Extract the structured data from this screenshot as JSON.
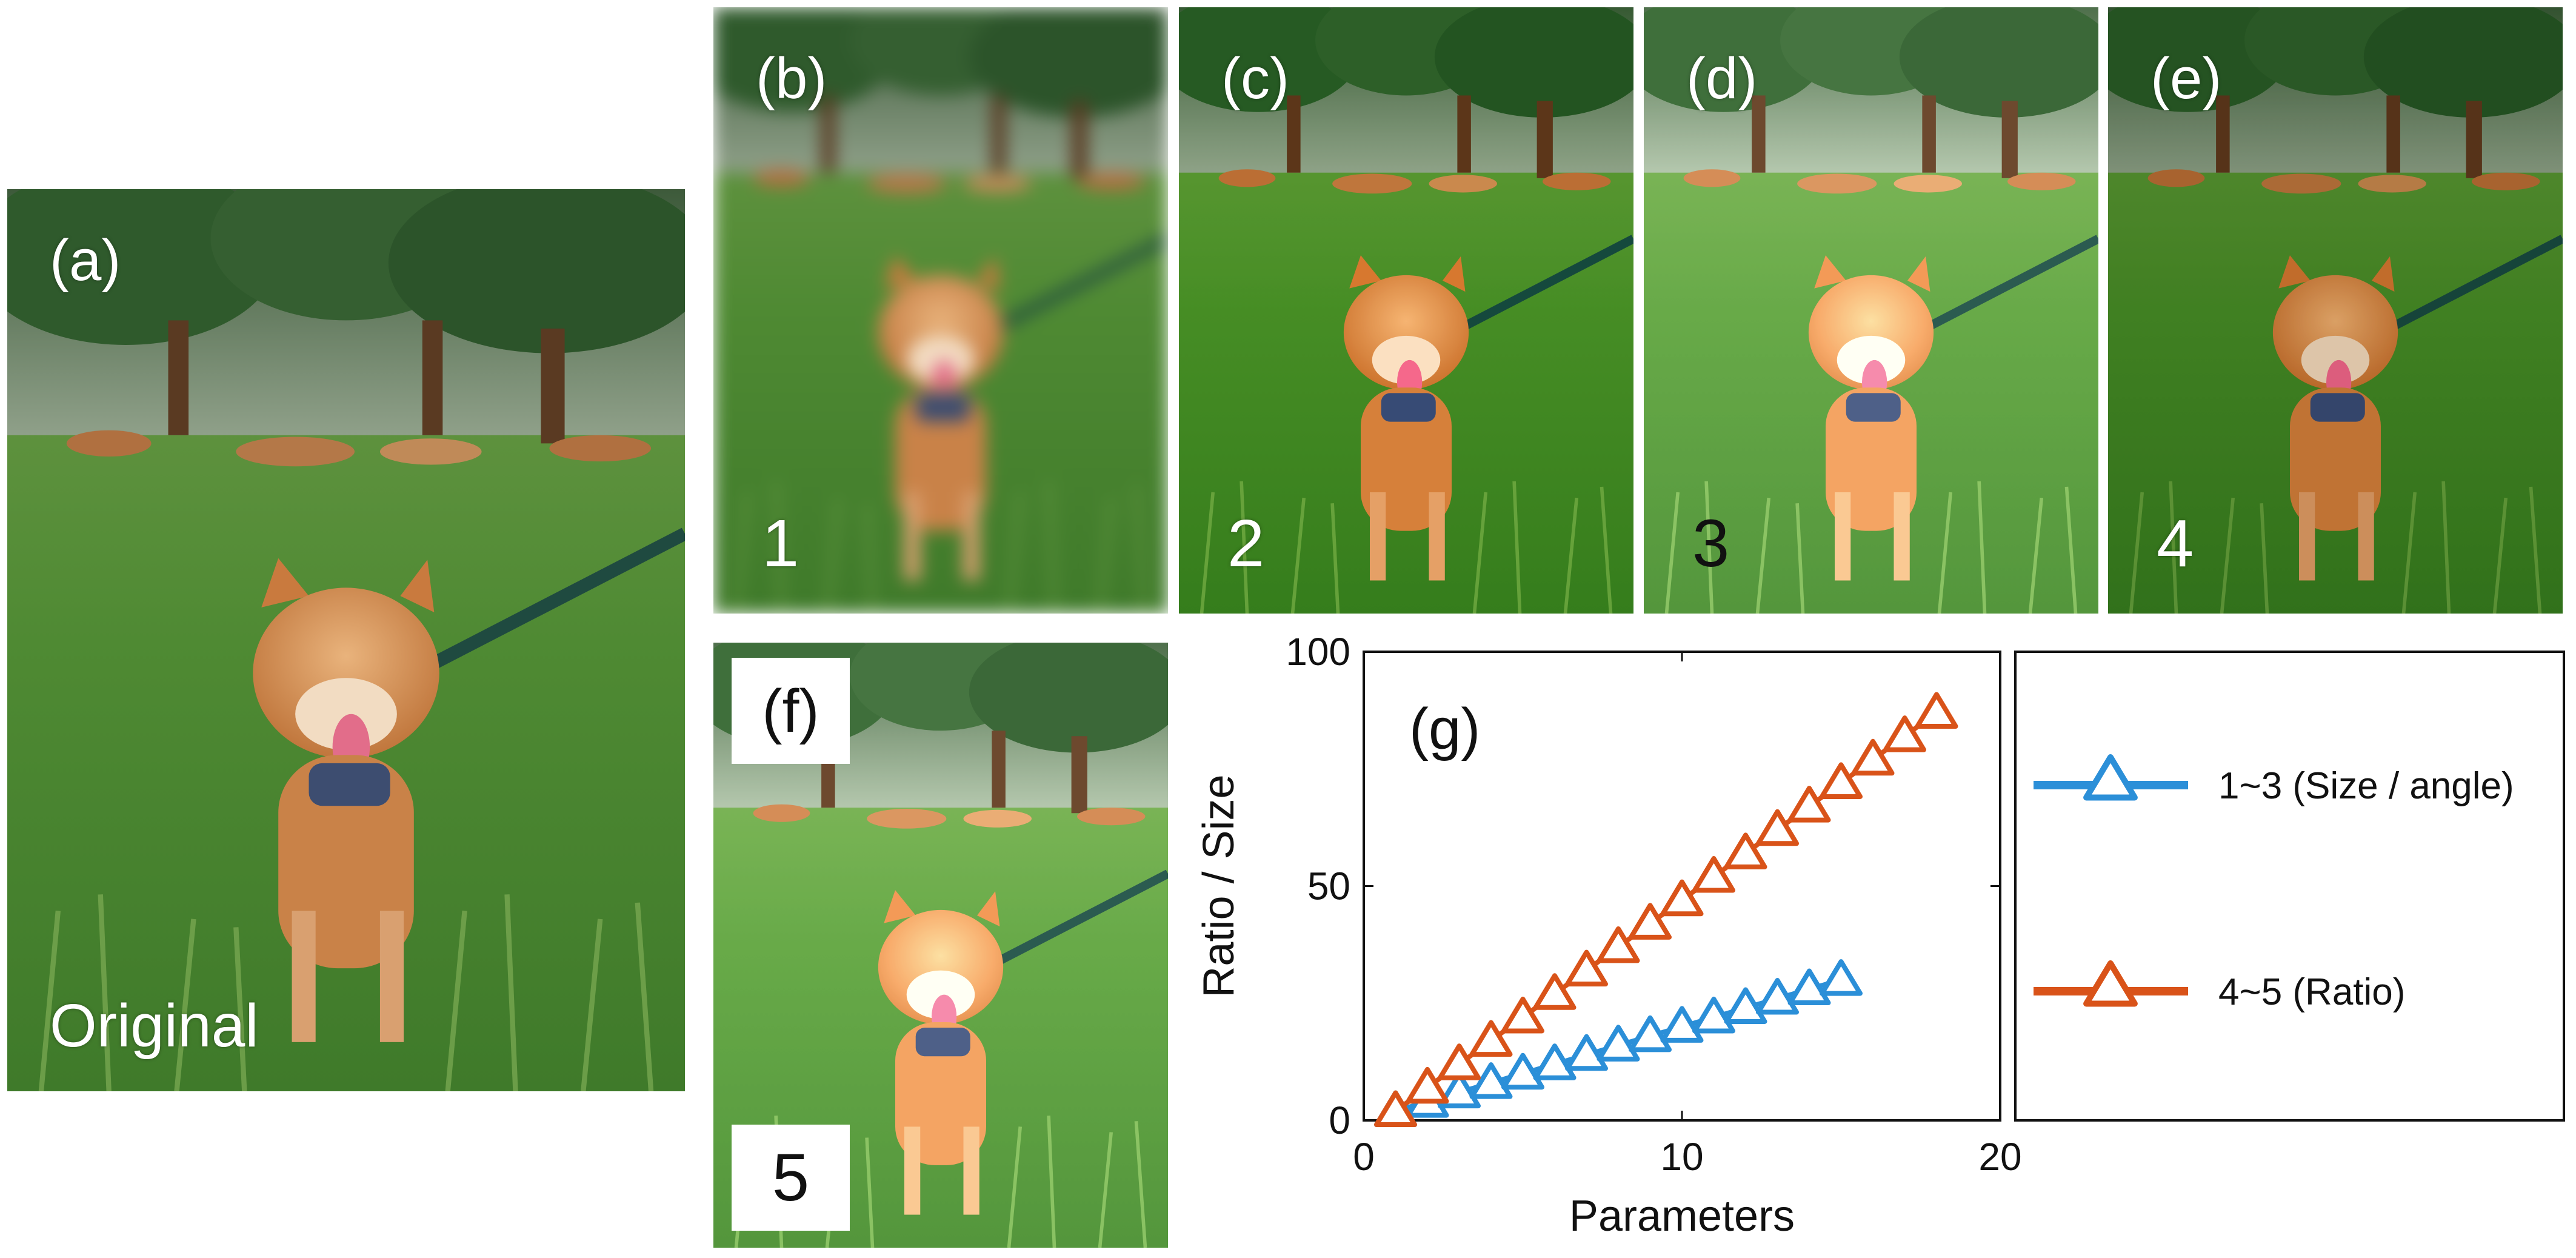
{
  "panels": {
    "a": {
      "label": "(a)",
      "caption": "Original"
    },
    "b": {
      "label": "(b)",
      "number": "1"
    },
    "c": {
      "label": "(c)",
      "number": "2"
    },
    "d": {
      "label": "(d)",
      "number": "3"
    },
    "e": {
      "label": "(e)",
      "number": "4"
    },
    "f": {
      "label": "(f)",
      "number": "5"
    }
  },
  "chart_data": {
    "type": "line",
    "panel_label": "(g)",
    "xlabel": "Parameters",
    "ylabel": "Ratio / Size",
    "xlim": [
      0,
      20
    ],
    "ylim": [
      0,
      100
    ],
    "xticks": [
      0,
      10,
      20
    ],
    "yticks": [
      0,
      50,
      100
    ],
    "legend_position": "right-outside",
    "series": [
      {
        "name": "1~3 (Size / angle)",
        "color": "#2b8fd8",
        "marker": "triangle",
        "x": [
          1,
          2,
          3,
          4,
          5,
          6,
          7,
          8,
          9,
          10,
          11,
          12,
          13,
          14,
          15
        ],
        "y": [
          2,
          4,
          6,
          8,
          10,
          12,
          14,
          16,
          18,
          20,
          22,
          24,
          26,
          28,
          30
        ]
      },
      {
        "name": "4~5 (Ratio)",
        "color": "#d95319",
        "marker": "triangle",
        "x": [
          1,
          2,
          3,
          4,
          5,
          6,
          7,
          8,
          9,
          10,
          11,
          12,
          13,
          14,
          15,
          16,
          17,
          18
        ],
        "y": [
          2,
          7,
          12,
          17,
          22,
          27,
          32,
          37,
          42,
          47,
          52,
          57,
          62,
          67,
          72,
          77,
          82,
          87
        ]
      }
    ]
  }
}
